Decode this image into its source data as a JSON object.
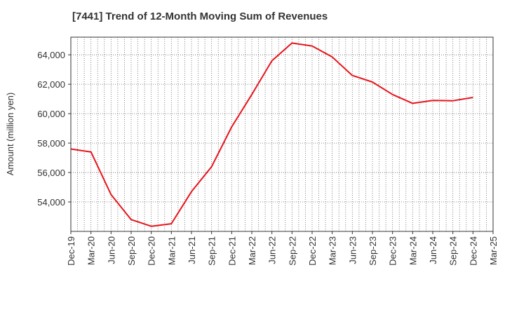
{
  "colors": {
    "series_line": "#e8141b",
    "grid": "#666666",
    "frame": "#333333",
    "text": "#333333"
  },
  "chart_data": {
    "type": "line",
    "title": "[7441]  Trend of 12-Month Moving Sum of Revenues",
    "xlabel": "",
    "ylabel": "Amount (million yen)",
    "grid": true,
    "legend": "none",
    "x_ticks": [
      "Dec-19",
      "Mar-20",
      "Jun-20",
      "Sep-20",
      "Dec-20",
      "Mar-21",
      "Jun-21",
      "Sep-21",
      "Dec-21",
      "Mar-22",
      "Jun-22",
      "Sep-22",
      "Dec-22",
      "Mar-23",
      "Jun-23",
      "Sep-23",
      "Dec-23",
      "Mar-24",
      "Jun-24",
      "Sep-24",
      "Dec-24",
      "Mar-25"
    ],
    "y_ticks": [
      54000,
      56000,
      58000,
      60000,
      62000,
      64000
    ],
    "y_tick_labels": [
      "54,000",
      "56,000",
      "58,000",
      "60,000",
      "62,000",
      "64,000"
    ],
    "ylim": [
      52000,
      65200
    ],
    "series": [
      {
        "x": [
          "Dec-19",
          "Mar-20",
          "Jun-20",
          "Sep-20",
          "Dec-20",
          "Mar-21",
          "Jun-21",
          "Sep-21",
          "Dec-21",
          "Mar-22",
          "Jun-22",
          "Sep-22",
          "Dec-22",
          "Mar-23",
          "Jun-23",
          "Sep-23",
          "Dec-23",
          "Mar-24",
          "Jun-24",
          "Sep-24",
          "Dec-24"
        ],
        "values": [
          57600,
          57400,
          54500,
          52800,
          52350,
          52520,
          54700,
          56400,
          59100,
          61300,
          63600,
          64800,
          64600,
          63850,
          62600,
          62150,
          61300,
          60700,
          60900,
          60880,
          61100
        ]
      }
    ]
  }
}
